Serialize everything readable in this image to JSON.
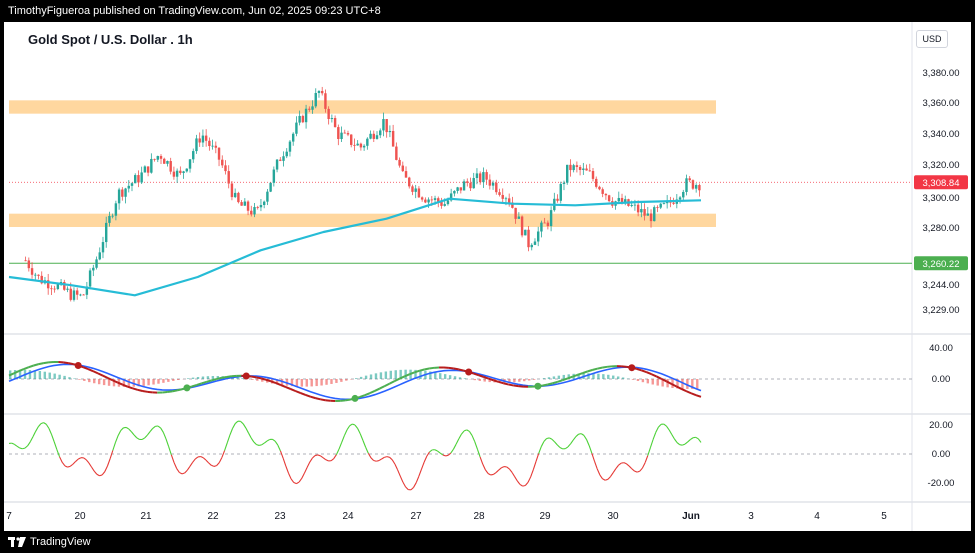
{
  "header": {
    "published": "TimothyFigueroa published on TradingView.com, Jun 02, 2025 09:23 UTC+8"
  },
  "footer": {
    "brand": "TradingView"
  },
  "chart": {
    "title": "Gold Spot / U.S. Dollar . 1h",
    "currency": "USD"
  },
  "chart_data": [
    {
      "type": "candlestick",
      "title": "Gold Spot / U.S. Dollar . 1h",
      "currency": "USD",
      "x_ticks": [
        "7",
        "20",
        "21",
        "22",
        "23",
        "24",
        "27",
        "28",
        "29",
        "30",
        "Jun",
        "3",
        "4",
        "5"
      ],
      "y_ticks": [
        "3,380.00",
        "3,360.00",
        "3,340.00",
        "3,320.00",
        "3,300.00",
        "3,280.00",
        "3,244.00",
        "3,229.00"
      ],
      "last_price": {
        "label": "3,308.84",
        "value": 3308.84,
        "color": "#f23645"
      },
      "horizontal_line": {
        "label": "3,260.22",
        "value": 3260.22,
        "color": "#4caf50"
      },
      "zones": [
        {
          "name": "resistance",
          "from": 3350,
          "to": 3358,
          "color": "#ffd59a"
        },
        {
          "name": "support",
          "from": 3282,
          "to": 3290,
          "color": "#ffd59a"
        }
      ],
      "moving_average": {
        "color": "#26bcd6",
        "approx_values": [
          3252,
          3247,
          3241,
          3252,
          3268,
          3279,
          3287,
          3299,
          3296,
          3295,
          3297,
          3298
        ]
      },
      "up_color": "#26a69a",
      "down_color": "#ef5350"
    },
    {
      "type": "line",
      "name": "oscillator",
      "y_ticks": [
        "40.00",
        "0.00"
      ],
      "series_colors": {
        "fast_rising": "#4caf50",
        "fast_falling": "#b71c1c",
        "slow": "#2962ff"
      },
      "histogram_colors": {
        "up": "#26a69a",
        "down": "#ef5350"
      },
      "cross_dot_colors": {
        "bull": "#4caf50",
        "bear": "#b71c1c"
      }
    },
    {
      "type": "line",
      "name": "momentum",
      "y_ticks": [
        "20.00",
        "0.00",
        "-20.00"
      ],
      "series_colors": {
        "above": "#4cd137",
        "below": "#e53935"
      },
      "zero_line": 0
    }
  ]
}
